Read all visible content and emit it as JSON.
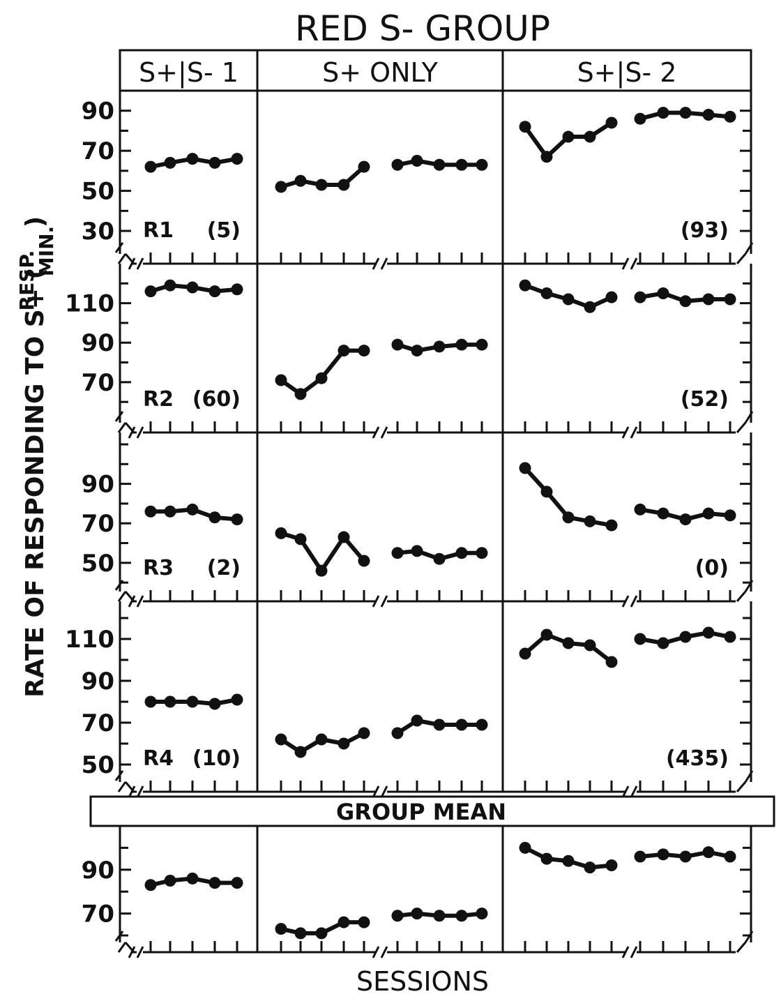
{
  "chart_data": {
    "type": "line",
    "title": "RED S- GROUP",
    "xlabel": "SESSIONS",
    "ylabel": "RATE OF RESPONDING TO S+ (",
    "ylabel_unit_top": "RESP.",
    "ylabel_unit_bottom": "MIN.",
    "ylabel_close": ")",
    "phases": [
      "S+|S- 1",
      "S+ ONLY",
      "S+|S- 2"
    ],
    "group_mean_label": "GROUP MEAN",
    "panels": [
      {
        "subject": "R1",
        "count": "(5)",
        "count2": "(93)",
        "ylim": [
          22,
          100
        ],
        "yticks": [
          30,
          50,
          70,
          90
        ],
        "segments": [
          [
            62,
            64,
            66,
            64,
            66
          ],
          [
            52,
            55,
            53,
            53,
            62
          ],
          [
            63,
            65,
            63,
            63,
            63
          ],
          [
            82,
            67,
            77,
            77,
            84
          ],
          [
            86,
            89,
            89,
            88,
            87
          ]
        ]
      },
      {
        "subject": "R2",
        "count": "(60)",
        "count2": "(52)",
        "ylim": [
          53,
          130
        ],
        "yticks": [
          70,
          90,
          110
        ],
        "segments": [
          [
            116,
            119,
            118,
            116,
            117
          ],
          [
            71,
            64,
            72,
            86,
            86
          ],
          [
            89,
            86,
            88,
            89,
            89
          ],
          [
            119,
            115,
            112,
            108,
            113
          ],
          [
            113,
            115,
            111,
            112,
            112
          ]
        ]
      },
      {
        "subject": "R3",
        "count": "(2)",
        "count2": "(0)",
        "ylim": [
          39,
          116
        ],
        "yticks": [
          50,
          70,
          90
        ],
        "segments": [
          [
            76,
            76,
            77,
            73,
            72
          ],
          [
            65,
            62,
            46,
            63,
            51
          ],
          [
            55,
            56,
            52,
            55,
            55
          ],
          [
            98,
            86,
            73,
            71,
            69
          ],
          [
            77,
            75,
            72,
            75,
            74
          ]
        ]
      },
      {
        "subject": "R4",
        "count": "(10)",
        "count2": "(435)",
        "ylim": [
          45,
          128
        ],
        "yticks": [
          50,
          70,
          90,
          110
        ],
        "segments": [
          [
            80,
            80,
            80,
            79,
            81
          ],
          [
            62,
            56,
            62,
            60,
            65
          ],
          [
            65,
            71,
            69,
            69,
            69
          ],
          [
            103,
            112,
            108,
            107,
            99
          ],
          [
            110,
            108,
            111,
            113,
            111
          ]
        ]
      },
      {
        "subject": "",
        "count": "",
        "count2": "",
        "ylim": [
          60,
          110
        ],
        "yticks": [
          70,
          90
        ],
        "segments": [
          [
            83,
            85,
            86,
            84,
            84
          ],
          [
            63,
            61,
            61,
            66,
            66
          ],
          [
            69,
            70,
            69,
            69,
            70
          ],
          [
            100,
            95,
            94,
            91,
            92
          ],
          [
            96,
            97,
            96,
            98,
            96
          ]
        ]
      }
    ]
  }
}
